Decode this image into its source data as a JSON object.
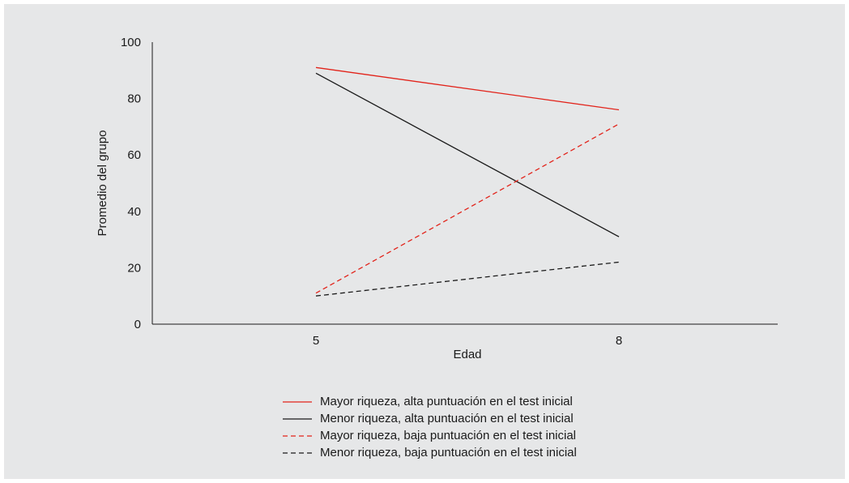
{
  "colors": {
    "background": "#e6e7e8",
    "axis": "#1a1a1a"
  },
  "chart_data": {
    "type": "line",
    "title": "",
    "xlabel": "Edad",
    "ylabel": "Promedio del grupo",
    "x": [
      5,
      8
    ],
    "x_tick_labels": [
      "5",
      "8"
    ],
    "ylim": [
      0,
      100
    ],
    "y_ticks": [
      0,
      20,
      40,
      60,
      80,
      100
    ],
    "grid": false,
    "legend_position": "bottom",
    "series": [
      {
        "name": "Mayor riqueza, alta puntuación en el test inicial",
        "values": [
          91,
          76
        ],
        "color": "#e2231a",
        "dash": "solid"
      },
      {
        "name": "Menor riqueza, alta puntuación en el test inicial",
        "values": [
          89,
          31
        ],
        "color": "#1a1a1a",
        "dash": "solid"
      },
      {
        "name": "Mayor riqueza, baja puntuación en el test inicial",
        "values": [
          11,
          71
        ],
        "color": "#e2231a",
        "dash": "dashed"
      },
      {
        "name": "Menor riqueza, baja puntuación en el test inicial",
        "values": [
          10,
          22
        ],
        "color": "#1a1a1a",
        "dash": "dashed"
      }
    ]
  }
}
